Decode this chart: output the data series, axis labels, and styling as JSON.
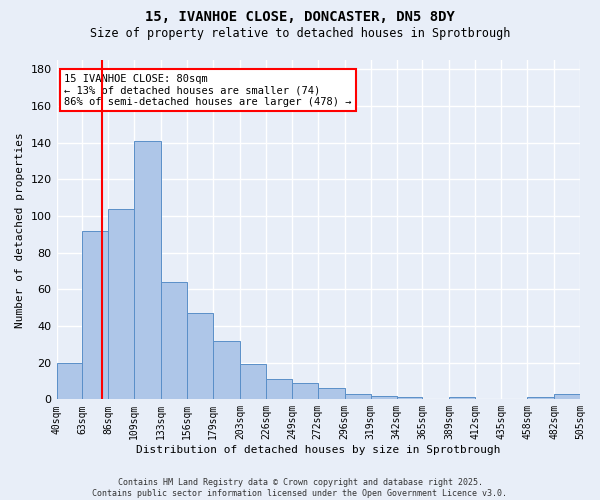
{
  "title_line1": "15, IVANHOE CLOSE, DONCASTER, DN5 8DY",
  "title_line2": "Size of property relative to detached houses in Sprotbrough",
  "xlabel": "Distribution of detached houses by size in Sprotbrough",
  "ylabel": "Number of detached properties",
  "bin_edges": [
    40,
    63,
    86,
    109,
    133,
    156,
    179,
    203,
    226,
    249,
    272,
    296,
    319,
    342,
    365,
    389,
    412,
    435,
    458,
    482,
    505
  ],
  "hist_counts": [
    20,
    92,
    104,
    141,
    64,
    47,
    32,
    19,
    11,
    9,
    6,
    3,
    2,
    1,
    0,
    1,
    0,
    0,
    1,
    3
  ],
  "tick_labels": [
    "40sqm",
    "63sqm",
    "86sqm",
    "109sqm",
    "133sqm",
    "156sqm",
    "179sqm",
    "203sqm",
    "226sqm",
    "249sqm",
    "272sqm",
    "296sqm",
    "319sqm",
    "342sqm",
    "365sqm",
    "389sqm",
    "412sqm",
    "435sqm",
    "458sqm",
    "482sqm",
    "505sqm"
  ],
  "bar_color": "#aec6e8",
  "bar_edge_color": "#5a8fc8",
  "red_line_x": 80,
  "annotation_text": "15 IVANHOE CLOSE: 80sqm\n← 13% of detached houses are smaller (74)\n86% of semi-detached houses are larger (478) →",
  "annotation_box_color": "white",
  "annotation_box_edge": "red",
  "background_color": "#e8eef8",
  "grid_color": "white",
  "ylim": [
    0,
    185
  ],
  "yticks": [
    0,
    20,
    40,
    60,
    80,
    100,
    120,
    140,
    160,
    180
  ],
  "copyright_text": "Contains HM Land Registry data © Crown copyright and database right 2025.\nContains public sector information licensed under the Open Government Licence v3.0."
}
